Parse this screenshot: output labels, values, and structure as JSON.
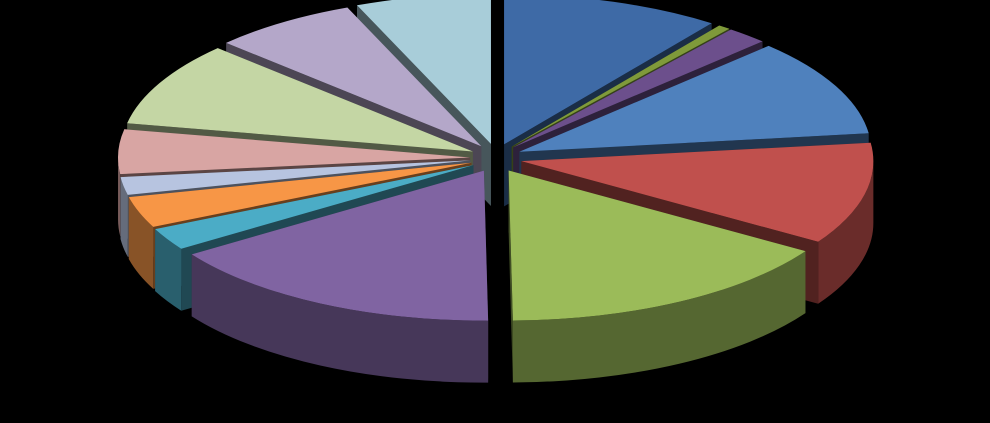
{
  "chart_data": {
    "type": "pie",
    "style": "3d-exploded",
    "title": "",
    "legend": "none",
    "data_labels": "none",
    "slices": [
      {
        "value": 10.5,
        "color": "#3e6aa6"
      },
      {
        "value": 0.6,
        "color": "#7f9a3a"
      },
      {
        "value": 2.0,
        "color": "#6c4f8c"
      },
      {
        "value": 11.0,
        "color": "#4f81bd"
      },
      {
        "value": 11.5,
        "color": "#c0504d"
      },
      {
        "value": 16.5,
        "color": "#9bbb59"
      },
      {
        "value": 16.5,
        "color": "#8064a2"
      },
      {
        "value": 2.5,
        "color": "#4bacc6"
      },
      {
        "value": 3.5,
        "color": "#f79646"
      },
      {
        "value": 2.0,
        "color": "#b7c4e0"
      },
      {
        "value": 5.0,
        "color": "#d8a5a3"
      },
      {
        "value": 9.5,
        "color": "#c4d6a4"
      },
      {
        "value": 7.0,
        "color": "#b4a7c9"
      },
      {
        "value": 6.5,
        "color": "#a8cdd9"
      }
    ]
  }
}
